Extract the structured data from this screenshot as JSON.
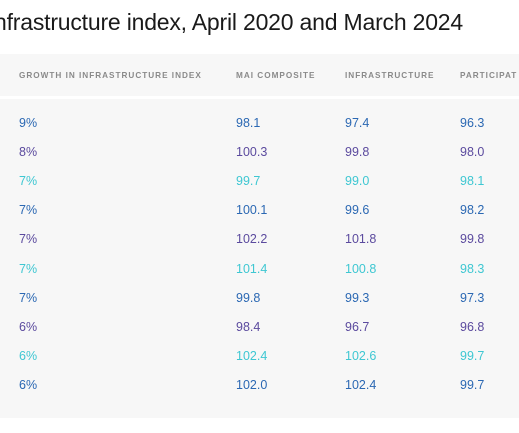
{
  "title": "nfrastructure index, April 2020 and March 2024",
  "colors": {
    "c1": "#2b68b3",
    "c2": "#5b4a9e",
    "c3": "#3ec7d2"
  },
  "table": {
    "headers": [
      "GROWTH IN INFRASTRUCTURE INDEX",
      "MAI COMPOSITE",
      "INFRASTRUCTURE",
      "PARTICIPAT"
    ],
    "rows": [
      {
        "cells": [
          "9%",
          "98.1",
          "97.4",
          "96.3"
        ],
        "color": "#2b68b3"
      },
      {
        "cells": [
          "8%",
          "100.3",
          "99.8",
          "98.0"
        ],
        "color": "#5b4a9e"
      },
      {
        "cells": [
          "7%",
          "99.7",
          "99.0",
          "98.1"
        ],
        "color": "#3ec7d2"
      },
      {
        "cells": [
          "7%",
          "100.1",
          "99.6",
          "98.2"
        ],
        "color": "#2b68b3"
      },
      {
        "cells": [
          "7%",
          "102.2",
          "101.8",
          "99.8"
        ],
        "color": "#5b4a9e"
      },
      {
        "cells": [
          "7%",
          "101.4",
          "100.8",
          "98.3"
        ],
        "color": "#3ec7d2"
      },
      {
        "cells": [
          "7%",
          "99.8",
          "99.3",
          "97.3"
        ],
        "color": "#2b68b3"
      },
      {
        "cells": [
          "6%",
          "98.4",
          "96.7",
          "96.8"
        ],
        "color": "#5b4a9e"
      },
      {
        "cells": [
          "6%",
          "102.4",
          "102.6",
          "99.7"
        ],
        "color": "#3ec7d2"
      },
      {
        "cells": [
          "6%",
          "102.0",
          "102.4",
          "99.7"
        ],
        "color": "#2b68b3"
      }
    ]
  }
}
